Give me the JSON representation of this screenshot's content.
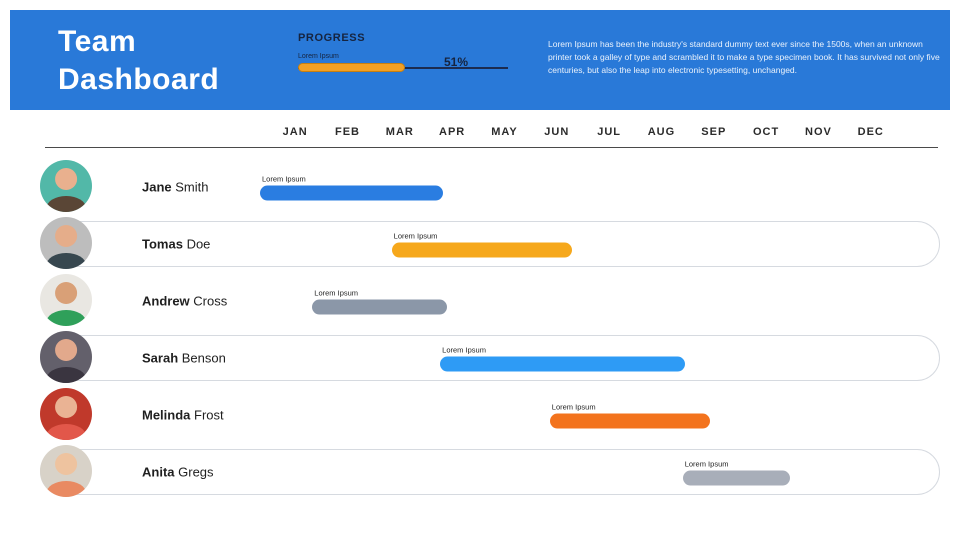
{
  "header": {
    "bg_color": "#2979d8",
    "title_line1": "Team",
    "title_line2": "Dashboard",
    "progress": {
      "label": "PROGRESS",
      "sublabel": "Lorem Ipsum",
      "value": 51,
      "value_label": "51%",
      "fill_color": "#f2a024",
      "track_color": "#1c2c50"
    },
    "description": "Lorem Ipsum has been the industry's standard dummy text ever since the 1500s, when an unknown printer took a galley of type and scrambled it to make a type specimen book. It has survived not only five centuries, but also the leap into electronic typesetting, unchanged."
  },
  "timeline": {
    "months": [
      "JAN",
      "FEB",
      "MAR",
      "APR",
      "MAY",
      "JUN",
      "JUL",
      "AUG",
      "SEP",
      "OCT",
      "NOV",
      "DEC"
    ]
  },
  "rows": [
    {
      "first": "Jane",
      "last": "Smith",
      "bar": {
        "label": "Lorem Ipsum",
        "color": "#2a7de1",
        "left_pct": 0,
        "width_pct": 29.0
      },
      "avatar": {
        "bg": "#52b8a8",
        "skin": "#e9b08e",
        "shirt": "#5a4636"
      }
    },
    {
      "first": "Tomas",
      "last": "Doe",
      "bar": {
        "label": "Lorem Ipsum",
        "color": "#f6a81c",
        "left_pct": 20.9,
        "width_pct": 28.7
      },
      "avatar": {
        "bg": "#bdbdbd",
        "skin": "#e5ad8a",
        "shirt": "#37474f"
      }
    },
    {
      "first": "Andrew",
      "last": "Cross",
      "bar": {
        "label": "Lorem Ipsum",
        "color": "#8b97a8",
        "left_pct": 8.3,
        "width_pct": 21.4
      },
      "avatar": {
        "bg": "#e9e7e2",
        "skin": "#d9a077",
        "shirt": "#2fa05a"
      }
    },
    {
      "first": "Sarah",
      "last": "Benson",
      "bar": {
        "label": "Lorem Ipsum",
        "color": "#2e9bf5",
        "left_pct": 28.6,
        "width_pct": 38.9
      },
      "avatar": {
        "bg": "#63606b",
        "skin": "#e2a98c",
        "shirt": "#3a3540"
      }
    },
    {
      "first": "Melinda",
      "last": "Frost",
      "bar": {
        "label": "Lorem Ipsum",
        "color": "#f3731d",
        "left_pct": 46.0,
        "width_pct": 25.4
      },
      "avatar": {
        "bg": "#c0392b",
        "skin": "#eab394",
        "shirt": "#e2574a"
      }
    },
    {
      "first": "Anita",
      "last": "Gregs",
      "bar": {
        "label": "Lorem Ipsum",
        "color": "#a8aeb9",
        "left_pct": 67.1,
        "width_pct": 17.0
      },
      "avatar": {
        "bg": "#d8d2c8",
        "skin": "#eec39f",
        "shirt": "#e98a62"
      }
    }
  ],
  "chart_data": {
    "type": "bar",
    "subtype": "gantt",
    "title": "Team Dashboard",
    "categories": [
      "JAN",
      "FEB",
      "MAR",
      "APR",
      "MAY",
      "JUN",
      "JUL",
      "AUG",
      "SEP",
      "OCT",
      "NOV",
      "DEC"
    ],
    "overall_progress_pct": 51,
    "tasks": [
      {
        "name": "Jane Smith",
        "label": "Lorem Ipsum",
        "start_month": 0.0,
        "end_month": 3.5,
        "color": "#2a7de1"
      },
      {
        "name": "Tomas Doe",
        "label": "Lorem Ipsum",
        "start_month": 2.5,
        "end_month": 6.0,
        "color": "#f6a81c"
      },
      {
        "name": "Andrew Cross",
        "label": "Lorem Ipsum",
        "start_month": 1.0,
        "end_month": 3.6,
        "color": "#8b97a8"
      },
      {
        "name": "Sarah Benson",
        "label": "Lorem Ipsum",
        "start_month": 3.4,
        "end_month": 8.1,
        "color": "#2e9bf5"
      },
      {
        "name": "Melinda Frost",
        "label": "Lorem Ipsum",
        "start_month": 5.5,
        "end_month": 8.6,
        "color": "#f3731d"
      },
      {
        "name": "Anita Gregs",
        "label": "Lorem Ipsum",
        "start_month": 8.1,
        "end_month": 10.1,
        "color": "#a8aeb9"
      }
    ]
  }
}
